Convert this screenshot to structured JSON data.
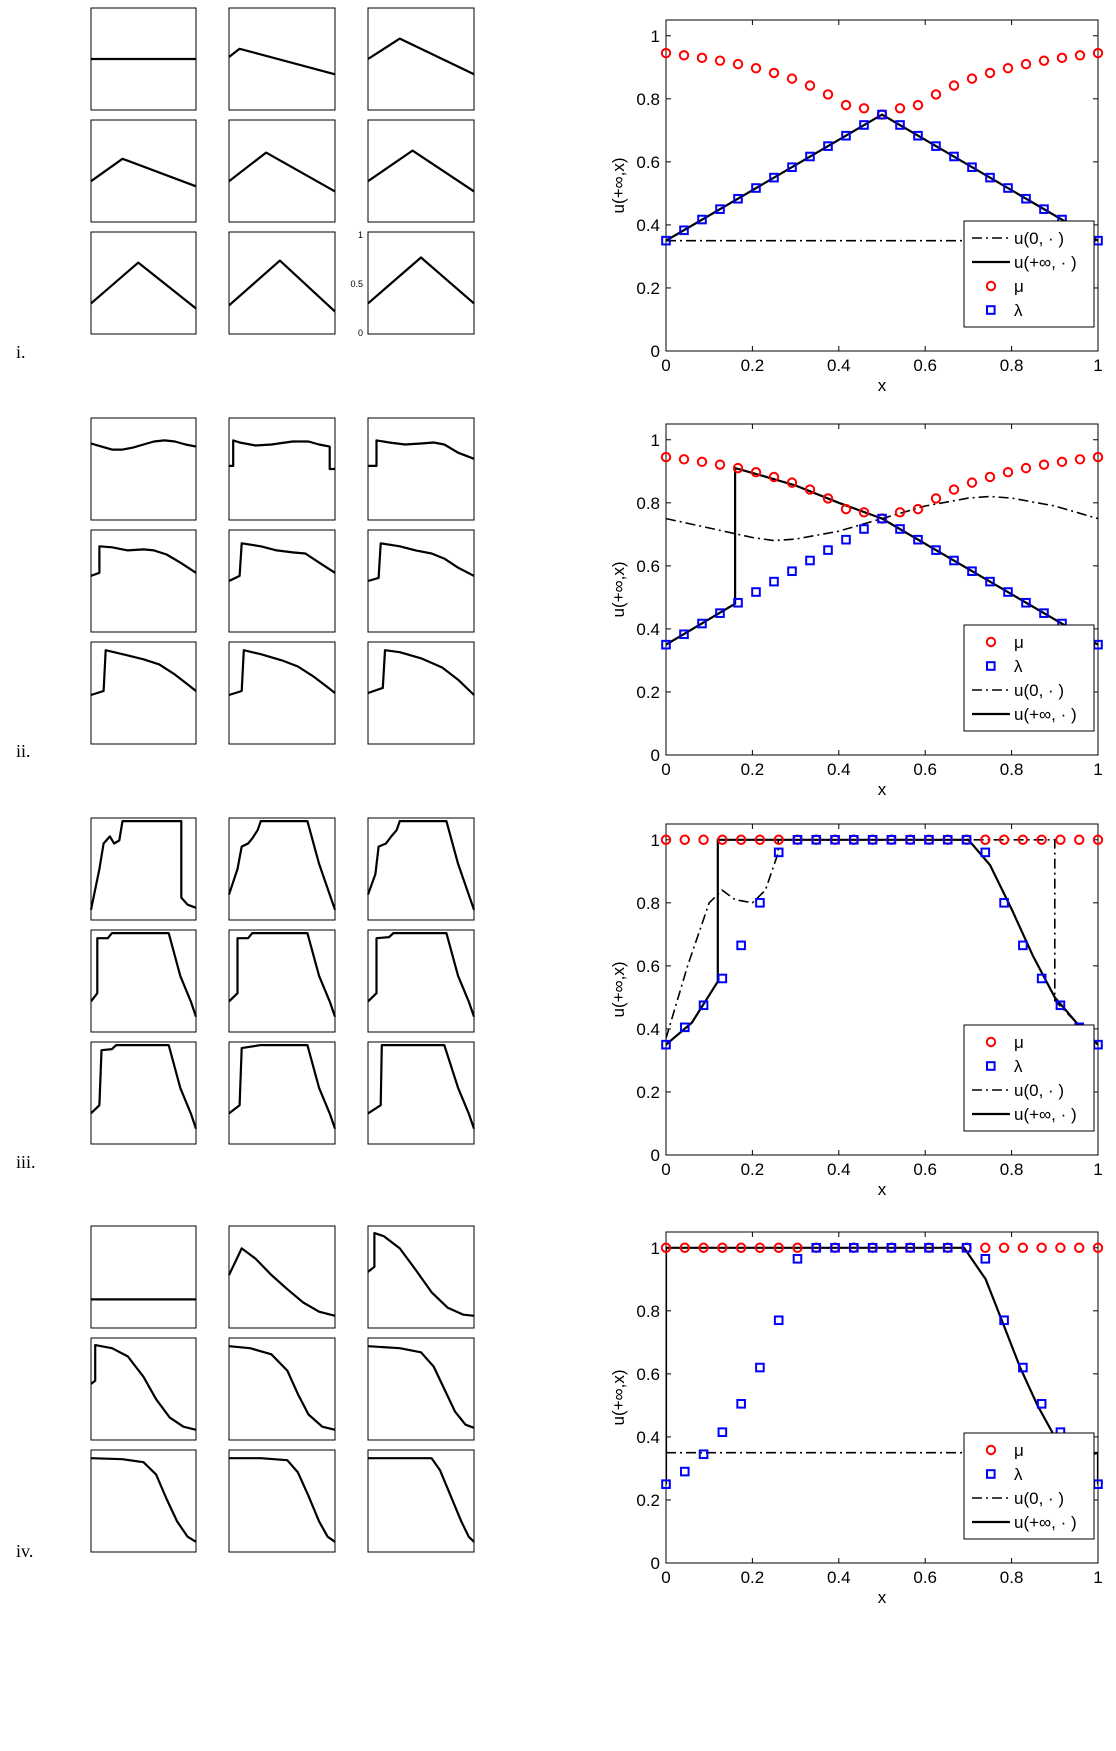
{
  "rows": [
    {
      "label": "i.",
      "small": {
        "shapes": [
          "flat",
          "wedge1",
          "wedge2",
          "wedge3",
          "wedge4",
          "wedge5",
          "wedge6",
          "wedge7",
          "wedge8"
        ],
        "ytick_labels": [
          "1",
          "0.5",
          "0"
        ]
      },
      "chart_data": {
        "type": "line",
        "xlabel": "x",
        "ylabel": "u(+∞,x)",
        "xlim": [
          0,
          1
        ],
        "ylim": [
          0,
          1.05
        ],
        "xticks": [
          0,
          0.2,
          0.4,
          0.6,
          0.8,
          1
        ],
        "xtick_labels": [
          "0",
          "0.2",
          "0.4",
          "0.6",
          "0.8",
          "1"
        ],
        "yticks": [
          0,
          0.2,
          0.4,
          0.6,
          0.8,
          1
        ],
        "ytick_labels": [
          "0",
          "0.2",
          "0.4",
          "0.6",
          "0.8",
          "1"
        ],
        "legend_position": "bottom-right",
        "series": [
          {
            "name": "u(0, · )",
            "kind": "line",
            "style": "dashdot",
            "color": "#000000",
            "x": [
              0,
              1
            ],
            "y": [
              0.35,
              0.35
            ]
          },
          {
            "name": "u(+∞, · )",
            "kind": "line",
            "style": "solid",
            "color": "#000000",
            "x": [
              0,
              0.5,
              1
            ],
            "y": [
              0.35,
              0.75,
              0.35
            ]
          },
          {
            "name": "μ",
            "kind": "circle",
            "color": "#ff0000",
            "x": [
              0,
              0.04167,
              0.08333,
              0.125,
              0.16667,
              0.20833,
              0.25,
              0.29167,
              0.33333,
              0.375,
              0.41667,
              0.45833,
              0.5,
              0.54167,
              0.58333,
              0.625,
              0.66667,
              0.70833,
              0.75,
              0.79167,
              0.83333,
              0.875,
              0.91667,
              0.95833,
              1
            ],
            "y": [
              0.945,
              0.938,
              0.93,
              0.921,
              0.91,
              0.897,
              0.882,
              0.864,
              0.842,
              0.814,
              0.78,
              0.77,
              0.75,
              0.77,
              0.78,
              0.814,
              0.842,
              0.864,
              0.882,
              0.897,
              0.91,
              0.921,
              0.93,
              0.938,
              0.945
            ]
          },
          {
            "name": "λ",
            "kind": "square",
            "color": "#0000ff",
            "x": [
              0,
              0.04167,
              0.08333,
              0.125,
              0.16667,
              0.20833,
              0.25,
              0.29167,
              0.33333,
              0.375,
              0.41667,
              0.45833,
              0.5,
              0.54167,
              0.58333,
              0.625,
              0.66667,
              0.70833,
              0.75,
              0.79167,
              0.83333,
              0.875,
              0.91667,
              0.95833,
              1
            ],
            "y": [
              0.35,
              0.383,
              0.417,
              0.45,
              0.483,
              0.517,
              0.55,
              0.583,
              0.617,
              0.65,
              0.683,
              0.717,
              0.75,
              0.717,
              0.683,
              0.65,
              0.617,
              0.583,
              0.55,
              0.517,
              0.483,
              0.45,
              0.417,
              0.383,
              0.35
            ]
          }
        ],
        "legend_order": [
          0,
          1,
          2,
          3
        ]
      }
    },
    {
      "label": "ii.",
      "small": {
        "shapes": [
          "sine",
          "jump1",
          "jump2",
          "jump3",
          "jump4",
          "jump5",
          "jump6",
          "jump7",
          "jump8"
        ],
        "ytick_labels": []
      },
      "chart_data": {
        "type": "line",
        "xlabel": "x",
        "ylabel": "u(+∞,x)",
        "xlim": [
          0,
          1
        ],
        "ylim": [
          0,
          1.05
        ],
        "xticks": [
          0,
          0.2,
          0.4,
          0.6,
          0.8,
          1
        ],
        "xtick_labels": [
          "0",
          "0.2",
          "0.4",
          "0.6",
          "0.8",
          "1"
        ],
        "yticks": [
          0,
          0.2,
          0.4,
          0.6,
          0.8,
          1
        ],
        "ytick_labels": [
          "0",
          "0.2",
          "0.4",
          "0.6",
          "0.8",
          "1"
        ],
        "legend_position": "bottom-right",
        "series": [
          {
            "name": "u(0, · )",
            "kind": "line",
            "style": "dashdot",
            "color": "#000000",
            "x": [
              0,
              0.1,
              0.2,
              0.25,
              0.3,
              0.4,
              0.5,
              0.6,
              0.7,
              0.75,
              0.8,
              0.9,
              1
            ],
            "y": [
              0.75,
              0.72,
              0.69,
              0.68,
              0.685,
              0.71,
              0.75,
              0.79,
              0.815,
              0.82,
              0.815,
              0.79,
              0.75
            ]
          },
          {
            "name": "u(+∞, · )",
            "kind": "line",
            "style": "solid",
            "color": "#000000",
            "x": [
              0,
              0.16,
              0.16,
              0.2,
              0.3,
              0.4,
              0.5,
              1
            ],
            "y": [
              0.35,
              0.48,
              0.91,
              0.895,
              0.855,
              0.8,
              0.75,
              0.35
            ]
          },
          {
            "name": "μ",
            "kind": "circle",
            "color": "#ff0000",
            "x": [
              0,
              0.04167,
              0.08333,
              0.125,
              0.16667,
              0.20833,
              0.25,
              0.29167,
              0.33333,
              0.375,
              0.41667,
              0.45833,
              0.5,
              0.54167,
              0.58333,
              0.625,
              0.66667,
              0.70833,
              0.75,
              0.79167,
              0.83333,
              0.875,
              0.91667,
              0.95833,
              1
            ],
            "y": [
              0.945,
              0.938,
              0.93,
              0.921,
              0.91,
              0.897,
              0.882,
              0.864,
              0.842,
              0.814,
              0.78,
              0.77,
              0.75,
              0.77,
              0.78,
              0.814,
              0.842,
              0.864,
              0.882,
              0.897,
              0.91,
              0.921,
              0.93,
              0.938,
              0.945
            ]
          },
          {
            "name": "λ",
            "kind": "square",
            "color": "#0000ff",
            "x": [
              0,
              0.04167,
              0.08333,
              0.125,
              0.16667,
              0.20833,
              0.25,
              0.29167,
              0.33333,
              0.375,
              0.41667,
              0.45833,
              0.5,
              0.54167,
              0.58333,
              0.625,
              0.66667,
              0.70833,
              0.75,
              0.79167,
              0.83333,
              0.875,
              0.91667,
              0.95833,
              1
            ],
            "y": [
              0.35,
              0.383,
              0.417,
              0.45,
              0.483,
              0.517,
              0.55,
              0.583,
              0.617,
              0.65,
              0.683,
              0.717,
              0.75,
              0.717,
              0.683,
              0.65,
              0.617,
              0.583,
              0.55,
              0.517,
              0.483,
              0.45,
              0.417,
              0.383,
              0.35
            ]
          }
        ],
        "legend_order": [
          2,
          3,
          0,
          1
        ]
      }
    },
    {
      "label": "iii.",
      "small": {
        "shapes": [
          "plat1",
          "plat2",
          "plat3",
          "plat4",
          "plat5",
          "plat6",
          "plat7",
          "plat8",
          "plat9"
        ],
        "ytick_labels": []
      },
      "chart_data": {
        "type": "line",
        "xlabel": "x",
        "ylabel": "u(+∞,x)",
        "xlim": [
          0,
          1
        ],
        "ylim": [
          0,
          1.05
        ],
        "xticks": [
          0,
          0.2,
          0.4,
          0.6,
          0.8,
          1
        ],
        "xtick_labels": [
          "0",
          "0.2",
          "0.4",
          "0.6",
          "0.8",
          "1"
        ],
        "yticks": [
          0,
          0.2,
          0.4,
          0.6,
          0.8,
          1
        ],
        "ytick_labels": [
          "0",
          "0.2",
          "0.4",
          "0.6",
          "0.8",
          "1"
        ],
        "legend_position": "bottom-right",
        "series": [
          {
            "name": "u(0, · )",
            "kind": "line",
            "style": "dashdot",
            "color": "#000000",
            "x": [
              0,
              0.05,
              0.1,
              0.13,
              0.16,
              0.2,
              0.23,
              0.26,
              0.26,
              0.9,
              0.9,
              1
            ],
            "y": [
              0.37,
              0.6,
              0.8,
              0.84,
              0.81,
              0.8,
              0.84,
              0.96,
              1,
              1,
              0.49,
              0.35
            ]
          },
          {
            "name": "u(+∞, · )",
            "kind": "line",
            "style": "solid",
            "color": "#000000",
            "x": [
              0,
              0.06,
              0.12,
              0.12,
              0.7,
              0.75,
              0.8,
              0.85,
              0.9,
              0.95,
              1
            ],
            "y": [
              0.35,
              0.42,
              0.55,
              1,
              1,
              0.92,
              0.78,
              0.63,
              0.5,
              0.42,
              0.35
            ]
          },
          {
            "name": "μ",
            "kind": "circle",
            "color": "#ff0000",
            "x": [
              0,
              0.04348,
              0.08696,
              0.13043,
              0.17391,
              0.21739,
              0.26087,
              0.30435,
              0.34783,
              0.3913,
              0.43478,
              0.47826,
              0.52174,
              0.56522,
              0.6087,
              0.65217,
              0.69565,
              0.73913,
              0.78261,
              0.82609,
              0.86957,
              0.91304,
              0.95652,
              1
            ],
            "y": [
              1,
              1,
              1,
              1,
              1,
              1,
              1,
              1,
              1,
              1,
              1,
              1,
              1,
              1,
              1,
              1,
              1,
              1,
              1,
              1,
              1,
              1,
              1,
              1
            ]
          },
          {
            "name": "λ",
            "kind": "square",
            "color": "#0000ff",
            "x": [
              0,
              0.04348,
              0.08696,
              0.13043,
              0.17391,
              0.21739,
              0.26087,
              0.30435,
              0.34783,
              0.3913,
              0.43478,
              0.47826,
              0.52174,
              0.56522,
              0.6087,
              0.65217,
              0.69565,
              0.73913,
              0.78261,
              0.82609,
              0.86957,
              0.91304,
              0.95652,
              1
            ],
            "y": [
              0.35,
              0.405,
              0.475,
              0.56,
              0.665,
              0.8,
              0.96,
              1,
              1,
              1,
              1,
              1,
              1,
              1,
              1,
              1,
              1,
              0.96,
              0.8,
              0.665,
              0.56,
              0.475,
              0.405,
              0.35
            ]
          }
        ],
        "legend_order": [
          2,
          3,
          0,
          1
        ]
      }
    },
    {
      "label": "iv.",
      "small": {
        "shapes": [
          "flat_low",
          "decay1",
          "decay2",
          "sig1",
          "sig2",
          "sig3",
          "sig4",
          "sig5",
          "sig6"
        ],
        "ytick_labels": []
      },
      "chart_data": {
        "type": "line",
        "xlabel": "x",
        "ylabel": "u(+∞,x)",
        "xlim": [
          0,
          1
        ],
        "ylim": [
          0,
          1.05
        ],
        "xticks": [
          0,
          0.2,
          0.4,
          0.6,
          0.8,
          1
        ],
        "xtick_labels": [
          "0",
          "0.2",
          "0.4",
          "0.6",
          "0.8",
          "1"
        ],
        "yticks": [
          0,
          0.2,
          0.4,
          0.6,
          0.8,
          1
        ],
        "ytick_labels": [
          "0",
          "0.2",
          "0.4",
          "0.6",
          "0.8",
          "1"
        ],
        "legend_position": "bottom-right",
        "series": [
          {
            "name": "u(0, · )",
            "kind": "line",
            "style": "dashdot",
            "color": "#000000",
            "x": [
              0,
              1
            ],
            "y": [
              0.35,
              0.35
            ]
          },
          {
            "name": "u(+∞, · )",
            "kind": "line",
            "style": "solid",
            "color": "#000000",
            "x": [
              0,
              0,
              0.69,
              0.74,
              0.78,
              0.82,
              0.86,
              0.9,
              0.95,
              1,
              1
            ],
            "y": [
              0.25,
              1,
              1,
              0.9,
              0.76,
              0.62,
              0.5,
              0.4,
              0.33,
              0.35,
              0.25
            ]
          },
          {
            "name": "μ",
            "kind": "circle",
            "color": "#ff0000",
            "x": [
              0,
              0.04348,
              0.08696,
              0.13043,
              0.17391,
              0.21739,
              0.26087,
              0.30435,
              0.34783,
              0.3913,
              0.43478,
              0.47826,
              0.52174,
              0.56522,
              0.6087,
              0.65217,
              0.69565,
              0.73913,
              0.78261,
              0.82609,
              0.86957,
              0.91304,
              0.95652,
              1
            ],
            "y": [
              1,
              1,
              1,
              1,
              1,
              1,
              1,
              1,
              1,
              1,
              1,
              1,
              1,
              1,
              1,
              1,
              1,
              1,
              1,
              1,
              1,
              1,
              1,
              1
            ]
          },
          {
            "name": "λ",
            "kind": "square",
            "color": "#0000ff",
            "x": [
              0,
              0.04348,
              0.08696,
              0.13043,
              0.17391,
              0.21739,
              0.26087,
              0.30435,
              0.34783,
              0.3913,
              0.43478,
              0.47826,
              0.52174,
              0.56522,
              0.6087,
              0.65217,
              0.69565,
              0.73913,
              0.78261,
              0.82609,
              0.86957,
              0.91304,
              0.95652,
              1
            ],
            "y": [
              0.25,
              0.29,
              0.345,
              0.415,
              0.505,
              0.62,
              0.77,
              0.965,
              1,
              1,
              1,
              1,
              1,
              1,
              1,
              1,
              1,
              0.965,
              0.77,
              0.62,
              0.505,
              0.415,
              0.345,
              0.25
            ]
          }
        ],
        "legend_order": [
          2,
          3,
          0,
          1
        ]
      }
    }
  ]
}
